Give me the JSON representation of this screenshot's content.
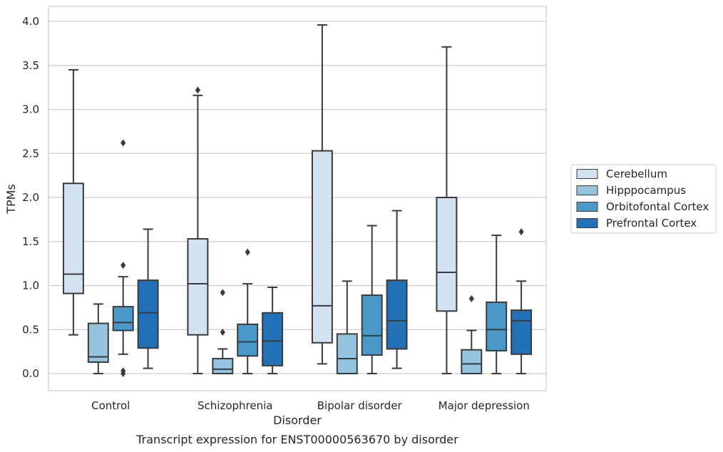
{
  "chart_data": {
    "type": "box",
    "caption": "Transcript expression for ENST00000563670 by disorder",
    "xlabel": "Disorder",
    "ylabel": "TPMs",
    "ylim": [
      -0.19,
      4.17
    ],
    "yticks": [
      0.0,
      0.5,
      1.0,
      1.5,
      2.0,
      2.5,
      3.0,
      3.5,
      4.0
    ],
    "ytick_labels": [
      "0.0",
      "0.5",
      "1.0",
      "1.5",
      "2.0",
      "2.5",
      "3.0",
      "3.5",
      "4.0"
    ],
    "grid": "horizontal",
    "legend_position": "right",
    "categories": [
      "Control",
      "Schizophrenia",
      "Bipolar disorder",
      "Major depression"
    ],
    "series": [
      {
        "name": "Cerebellum",
        "color": "#d2e2f1",
        "boxes": [
          {
            "whisker_low": 0.44,
            "q1": 0.91,
            "median": 1.13,
            "q3": 2.16,
            "whisker_high": 3.45,
            "outliers": []
          },
          {
            "whisker_low": 0.0,
            "q1": 0.44,
            "median": 1.02,
            "q3": 1.53,
            "whisker_high": 3.16,
            "outliers": [
              3.22
            ]
          },
          {
            "whisker_low": 0.11,
            "q1": 0.35,
            "median": 0.77,
            "q3": 2.53,
            "whisker_high": 3.96,
            "outliers": []
          },
          {
            "whisker_low": 0.0,
            "q1": 0.71,
            "median": 1.15,
            "q3": 2.0,
            "whisker_high": 3.71,
            "outliers": []
          }
        ]
      },
      {
        "name": "Hipppocampus",
        "color": "#94c4df",
        "boxes": [
          {
            "whisker_low": 0.0,
            "q1": 0.13,
            "median": 0.19,
            "q3": 0.57,
            "whisker_high": 0.79,
            "outliers": []
          },
          {
            "whisker_low": 0.0,
            "q1": 0.0,
            "median": 0.05,
            "q3": 0.17,
            "whisker_high": 0.28,
            "outliers": [
              0.47,
              0.92
            ]
          },
          {
            "whisker_low": 0.0,
            "q1": 0.0,
            "median": 0.17,
            "q3": 0.45,
            "whisker_high": 1.05,
            "outliers": []
          },
          {
            "whisker_low": 0.0,
            "q1": 0.0,
            "median": 0.11,
            "q3": 0.27,
            "whisker_high": 0.49,
            "outliers": [
              0.85
            ]
          }
        ]
      },
      {
        "name": "Orbitofontal Cortex",
        "color": "#4a98c9",
        "boxes": [
          {
            "whisker_low": 0.22,
            "q1": 0.49,
            "median": 0.58,
            "q3": 0.76,
            "whisker_high": 1.1,
            "outliers": [
              0.0,
              0.03,
              1.23,
              2.62
            ]
          },
          {
            "whisker_low": 0.0,
            "q1": 0.2,
            "median": 0.36,
            "q3": 0.56,
            "whisker_high": 1.02,
            "outliers": [
              1.38
            ]
          },
          {
            "whisker_low": 0.0,
            "q1": 0.21,
            "median": 0.43,
            "q3": 0.89,
            "whisker_high": 1.68,
            "outliers": []
          },
          {
            "whisker_low": 0.0,
            "q1": 0.26,
            "median": 0.5,
            "q3": 0.81,
            "whisker_high": 1.57,
            "outliers": []
          }
        ]
      },
      {
        "name": "Prefrontal Cortex",
        "color": "#2270b5",
        "boxes": [
          {
            "whisker_low": 0.06,
            "q1": 0.29,
            "median": 0.69,
            "q3": 1.06,
            "whisker_high": 1.64,
            "outliers": []
          },
          {
            "whisker_low": 0.0,
            "q1": 0.09,
            "median": 0.37,
            "q3": 0.69,
            "whisker_high": 0.98,
            "outliers": []
          },
          {
            "whisker_low": 0.06,
            "q1": 0.28,
            "median": 0.6,
            "q3": 1.06,
            "whisker_high": 1.85,
            "outliers": []
          },
          {
            "whisker_low": 0.0,
            "q1": 0.22,
            "median": 0.6,
            "q3": 0.72,
            "whisker_high": 1.05,
            "outliers": [
              1.61
            ]
          }
        ]
      }
    ]
  }
}
